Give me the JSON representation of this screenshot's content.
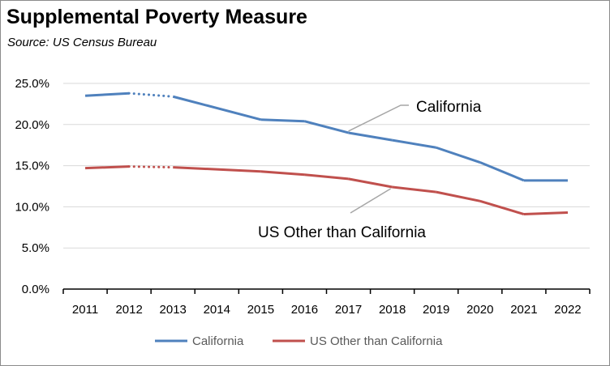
{
  "header": {
    "title": "Supplemental Poverty Measure",
    "subtitle": "Source:  US Census Bureau"
  },
  "chart_data": {
    "type": "line",
    "title": "Supplemental Poverty Measure",
    "subtitle": "Source:  US Census Bureau",
    "xlabel": "",
    "ylabel": "",
    "x": [
      "2011",
      "2012",
      "2013",
      "2014",
      "2015",
      "2016",
      "2017",
      "2018",
      "2019",
      "2020",
      "2021",
      "2022"
    ],
    "ylim": [
      0,
      25
    ],
    "yticks": [
      0,
      5,
      10,
      15,
      20,
      25
    ],
    "ytick_labels": [
      "0.0%",
      "5.0%",
      "10.0%",
      "15.0%",
      "20.0%",
      "25.0%"
    ],
    "grid": true,
    "legend": "bottom",
    "note": "Dotted segment between 2012 and 2013; no marker at 2014",
    "series": [
      {
        "name": "California",
        "color": "#4f81bd",
        "values": [
          23.5,
          23.8,
          23.4,
          null,
          20.6,
          20.4,
          19.0,
          18.1,
          17.2,
          15.4,
          13.2,
          13.2
        ]
      },
      {
        "name": "US Other than California",
        "color": "#c0504d",
        "values": [
          14.7,
          14.9,
          14.8,
          null,
          14.3,
          13.9,
          13.4,
          12.4,
          11.8,
          10.7,
          9.1,
          9.3
        ]
      }
    ],
    "annotations": [
      {
        "text": "California",
        "series": "California",
        "at_x": "2017"
      },
      {
        "text": "US Other than California",
        "series": "US Other than California",
        "at_x": "2018"
      }
    ]
  }
}
